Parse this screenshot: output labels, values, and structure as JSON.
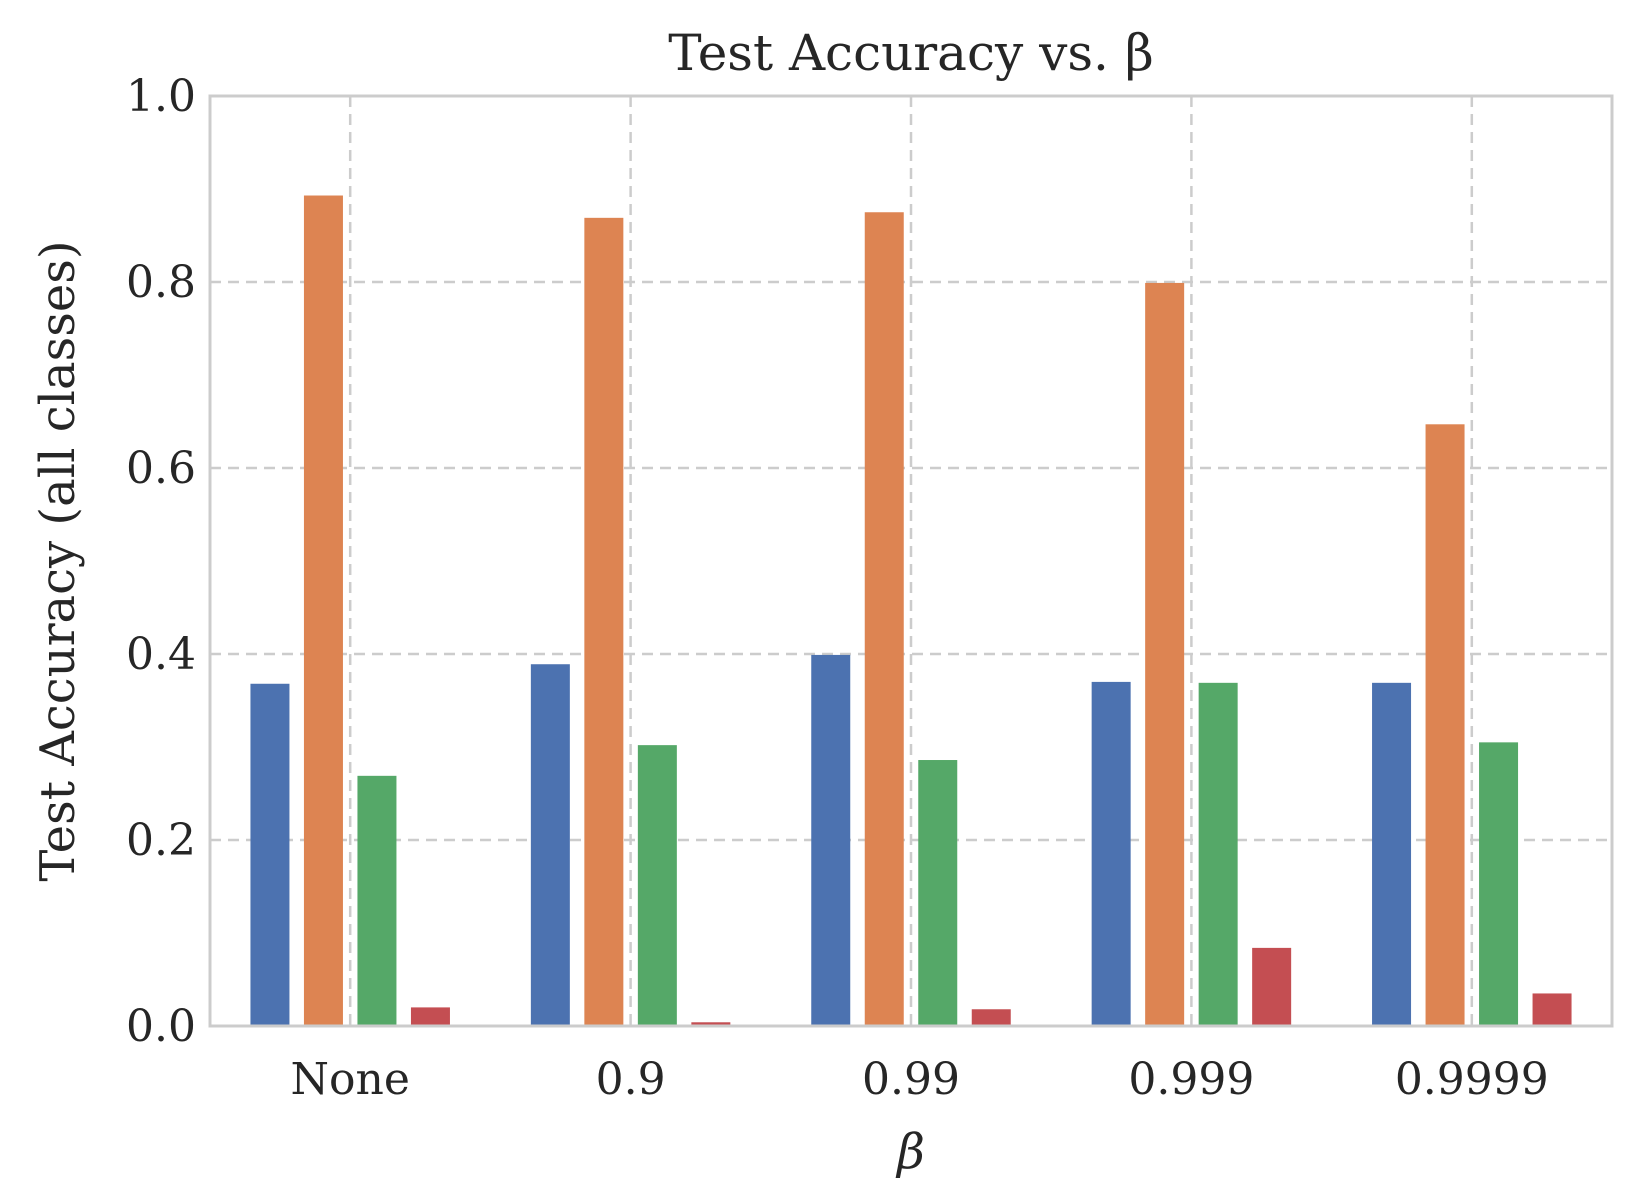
{
  "chart_data": {
    "type": "bar",
    "title": "Test Accuracy vs. β",
    "xlabel": "β",
    "ylabel": "Test Accuracy (all classes)",
    "categories": [
      "None",
      "0.9",
      "0.99",
      "0.999",
      "0.9999"
    ],
    "ylim": [
      0,
      1.0
    ],
    "yticks": [
      "0.0",
      "0.2",
      "0.4",
      "0.6",
      "0.8",
      "1.0"
    ],
    "grid": true,
    "legend": "none",
    "series": [
      {
        "color": "#4c72b0",
        "values": [
          0.368,
          0.389,
          0.399,
          0.37,
          0.369
        ]
      },
      {
        "color": "#dd8452",
        "values": [
          0.893,
          0.869,
          0.875,
          0.799,
          0.647
        ]
      },
      {
        "color": "#55a868",
        "values": [
          0.269,
          0.302,
          0.286,
          0.369,
          0.305
        ]
      },
      {
        "color": "#c44e52",
        "values": [
          0.02,
          0.004,
          0.018,
          0.084,
          0.035
        ]
      }
    ]
  }
}
